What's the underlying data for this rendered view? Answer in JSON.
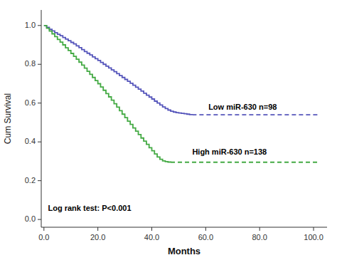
{
  "chart_data": {
    "type": "step",
    "xlabel": "Months",
    "ylabel": "Cum Survival",
    "xlim": [
      -1,
      105
    ],
    "ylim": [
      -0.04,
      1.08
    ],
    "xticks": [
      {
        "value": 0,
        "label": "0.0"
      },
      {
        "value": 20,
        "label": "20.0"
      },
      {
        "value": 40,
        "label": "40.0"
      },
      {
        "value": 60,
        "label": "60.0"
      },
      {
        "value": 80,
        "label": "80.0"
      },
      {
        "value": 100,
        "label": "100.0"
      }
    ],
    "yticks": [
      {
        "value": 0,
        "label": "0.0"
      },
      0.2,
      0.4,
      0.6,
      0.8,
      {
        "value": 1,
        "label": "1.0"
      }
    ],
    "grid": false,
    "series": [
      {
        "color": "#5555bb",
        "line_style": "solid",
        "x": [
          0,
          1,
          2,
          3,
          4,
          5,
          6,
          7,
          8,
          9,
          10,
          11,
          12,
          13,
          14,
          15,
          16,
          17,
          18,
          19,
          20,
          21,
          22,
          23,
          24,
          25,
          26,
          27,
          28,
          29,
          30,
          31,
          32,
          33,
          34,
          35,
          36,
          37,
          38,
          39,
          40,
          41,
          42,
          43,
          44,
          45,
          46,
          47,
          48,
          49,
          50,
          51,
          52,
          53,
          54,
          55
        ],
        "values": [
          1.0,
          0.99,
          0.98,
          0.972,
          0.963,
          0.955,
          0.947,
          0.938,
          0.93,
          0.922,
          0.913,
          0.905,
          0.895,
          0.886,
          0.876,
          0.866,
          0.857,
          0.848,
          0.838,
          0.829,
          0.82,
          0.81,
          0.8,
          0.79,
          0.781,
          0.771,
          0.762,
          0.752,
          0.742,
          0.732,
          0.722,
          0.712,
          0.702,
          0.692,
          0.682,
          0.672,
          0.662,
          0.651,
          0.641,
          0.631,
          0.621,
          0.61,
          0.6,
          0.59,
          0.58,
          0.572,
          0.564,
          0.558,
          0.554,
          0.551,
          0.549,
          0.547,
          0.545,
          0.543,
          0.541,
          0.54
        ]
      },
      {
        "color": "#44aa44",
        "line_style": "solid",
        "x": [
          0,
          1,
          2,
          3,
          4,
          5,
          6,
          7,
          8,
          9,
          10,
          11,
          12,
          13,
          14,
          15,
          16,
          17,
          18,
          19,
          20,
          21,
          22,
          23,
          24,
          25,
          26,
          27,
          28,
          29,
          30,
          31,
          32,
          33,
          34,
          35,
          36,
          37,
          38,
          39,
          40,
          41,
          42,
          43,
          44,
          45,
          46,
          47
        ],
        "values": [
          1.0,
          0.986,
          0.971,
          0.957,
          0.943,
          0.928,
          0.914,
          0.9,
          0.885,
          0.871,
          0.856,
          0.841,
          0.826,
          0.811,
          0.796,
          0.78,
          0.764,
          0.748,
          0.732,
          0.716,
          0.7,
          0.683,
          0.666,
          0.649,
          0.632,
          0.615,
          0.597,
          0.579,
          0.561,
          0.543,
          0.525,
          0.507,
          0.49,
          0.472,
          0.455,
          0.438,
          0.42,
          0.404,
          0.387,
          0.37,
          0.354,
          0.338,
          0.322,
          0.31,
          0.302,
          0.298,
          0.296,
          0.295
        ]
      },
      {
        "color": "#5555bb",
        "line_style": "dashed",
        "x": [
          55.0,
          102
        ],
        "values": [
          0.54,
          0.54
        ]
      },
      {
        "color": "#44aa44",
        "line_style": "dashed",
        "x": [
          47.0,
          102
        ],
        "values": [
          0.295,
          0.295
        ]
      }
    ],
    "annotations": [
      {
        "text": "Low miR-630 n=98",
        "x": 61,
        "y": 0.575
      },
      {
        "text": "High miR-630 n=138",
        "x": 55,
        "y": 0.345
      },
      {
        "text": "Log rank test: P<0.001",
        "x": 1.5,
        "y": 0.055
      }
    ]
  }
}
